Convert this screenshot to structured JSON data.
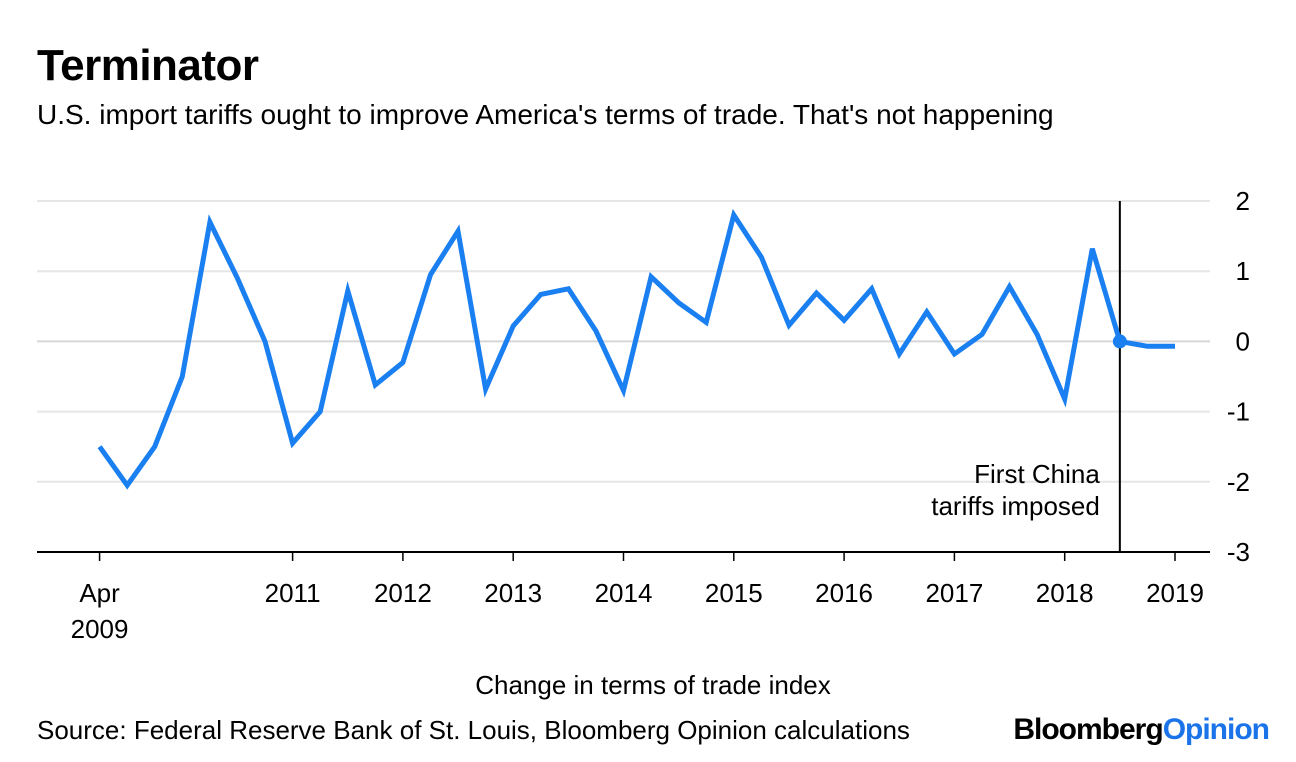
{
  "title": "Terminator",
  "subtitle": "U.S. import tariffs ought to improve America's terms of trade. That's not happening",
  "source": "Source: Federal Reserve Bank of St. Louis, Bloomberg Opinion calculations",
  "brand": {
    "part1": "Bloomberg",
    "part2": "Opinion"
  },
  "colors": {
    "line": "#1a7ff0",
    "grid": "#e6e6e6",
    "axis": "#000000",
    "brand_accent": "#1a73e8"
  },
  "chart_data": {
    "type": "line",
    "title": "Terminator",
    "subtitle": "U.S. import tariffs ought to improve America's terms of trade. That's not happening",
    "xlabel": "Change in terms of trade index",
    "ylabel": "",
    "ylim": [
      -3,
      2
    ],
    "yticks": [
      2,
      1,
      0,
      -1,
      -2,
      -3
    ],
    "ytick_labels": [
      "2",
      "1",
      "0",
      "-1",
      "-2",
      "-3"
    ],
    "xlim": [
      2009.25,
      2019.25
    ],
    "xticks": [
      {
        "x": 2009.5,
        "label": [
          "Apr",
          "2009"
        ]
      },
      {
        "x": 2011.25,
        "label": [
          "2011"
        ]
      },
      {
        "x": 2012.25,
        "label": [
          "2012"
        ]
      },
      {
        "x": 2013.25,
        "label": [
          "2013"
        ]
      },
      {
        "x": 2014.25,
        "label": [
          "2014"
        ]
      },
      {
        "x": 2015.25,
        "label": [
          "2015"
        ]
      },
      {
        "x": 2016.25,
        "label": [
          "2016"
        ]
      },
      {
        "x": 2017.25,
        "label": [
          "2017"
        ]
      },
      {
        "x": 2018.25,
        "label": [
          "2018"
        ]
      },
      {
        "x": 2019.25,
        "label": [
          "2019"
        ]
      }
    ],
    "series": [
      {
        "name": "Change in terms of trade index",
        "x": [
          2009.5,
          2009.75,
          2010.0,
          2010.25,
          2010.5,
          2010.75,
          2011.0,
          2011.25,
          2011.5,
          2011.75,
          2012.0,
          2012.25,
          2012.5,
          2012.75,
          2013.0,
          2013.25,
          2013.5,
          2013.75,
          2014.0,
          2014.25,
          2014.5,
          2014.75,
          2015.0,
          2015.25,
          2015.5,
          2015.75,
          2016.0,
          2016.25,
          2016.5,
          2016.75,
          2017.0,
          2017.25,
          2017.5,
          2017.75,
          2018.0,
          2018.25,
          2018.5,
          2018.75,
          2019.0,
          2019.25
        ],
        "values": [
          -1.5,
          -2.05,
          -1.5,
          -0.5,
          1.7,
          0.9,
          0.0,
          -1.45,
          -1.0,
          0.72,
          -0.62,
          -0.3,
          0.95,
          1.57,
          -0.68,
          0.22,
          0.67,
          0.75,
          0.15,
          -0.7,
          0.92,
          0.55,
          0.27,
          1.8,
          1.2,
          0.23,
          0.69,
          0.3,
          0.75,
          -0.18,
          0.42,
          -0.18,
          0.1,
          0.78,
          0.1,
          -0.82,
          1.32,
          0.0,
          -0.07,
          -0.07
        ]
      }
    ],
    "highlight_point": {
      "x": 2018.75,
      "y": 0.0
    },
    "annotations": [
      {
        "x": 2018.75,
        "lines": [
          "First China",
          "tariffs imposed"
        ]
      }
    ]
  }
}
